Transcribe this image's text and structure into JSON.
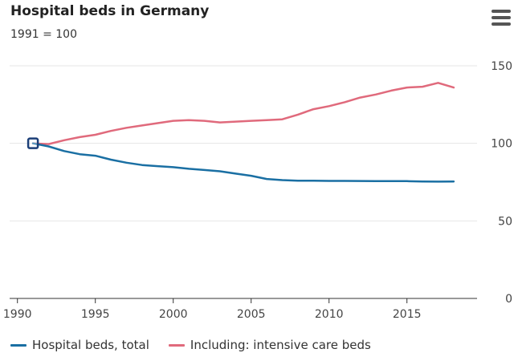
{
  "header": {
    "title": "Hospital beds in Germany",
    "subtitle": "1991 = 100"
  },
  "menu_icon": "hamburger-menu-icon",
  "chart_data": {
    "type": "line",
    "title": "Hospital beds in Germany",
    "subtitle": "1991 = 100",
    "xlabel": "",
    "ylabel": "",
    "xlim": [
      1989.5,
      2019.5
    ],
    "ylim": [
      0,
      150
    ],
    "x_ticks": [
      1990,
      1995,
      2000,
      2005,
      2010,
      2015
    ],
    "y_ticks": [
      0,
      50,
      100,
      150
    ],
    "y_axis_side": "right",
    "grid": true,
    "legend_position": "bottom-left",
    "x": [
      1991,
      1992,
      1993,
      1994,
      1995,
      1996,
      1997,
      1998,
      1999,
      2000,
      2001,
      2002,
      2003,
      2004,
      2005,
      2006,
      2007,
      2008,
      2009,
      2010,
      2011,
      2012,
      2013,
      2014,
      2015,
      2016,
      2017,
      2018
    ],
    "series": [
      {
        "name": "Hospital beds, total",
        "color": "#1a6fa3",
        "values": [
          100,
          98,
          95,
          93,
          92,
          89.5,
          87.5,
          86,
          85.3,
          84.6,
          83.6,
          82.8,
          82,
          80.5,
          79.1,
          77,
          76.3,
          75.9,
          75.9,
          75.8,
          75.8,
          75.7,
          75.6,
          75.6,
          75.6,
          75.4,
          75.3,
          75.4
        ]
      },
      {
        "name": "Including: intensive care beds",
        "color": "#e06a7c",
        "values": [
          100,
          99.5,
          102,
          104,
          105.5,
          108,
          110,
          111.5,
          113,
          114.5,
          115,
          114.5,
          113.5,
          114,
          114.5,
          115,
          115.5,
          118.5,
          122,
          124,
          126.5,
          129.5,
          131.5,
          134,
          136,
          136.5,
          139,
          136
        ]
      }
    ],
    "marker": {
      "series": "Hospital beds, total",
      "x": 1991,
      "y": 100
    }
  }
}
